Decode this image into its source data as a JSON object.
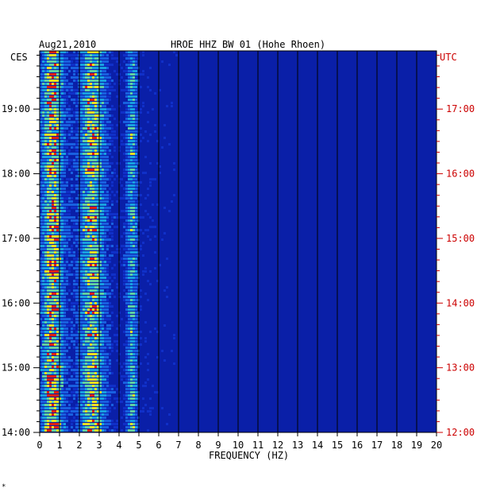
{
  "chart_data": {
    "type": "heatmap",
    "title": "HROE HHZ BW 01 (Hohe Rhoen)",
    "date": "Aug21,2010",
    "left_timezone": "CES",
    "right_timezone": "UTC",
    "xlabel": "FREQUENCY (HZ)",
    "x_ticks": [
      0,
      1,
      2,
      3,
      4,
      5,
      6,
      7,
      8,
      9,
      10,
      11,
      12,
      13,
      14,
      15,
      16,
      17,
      18,
      19,
      20
    ],
    "xlim": [
      0,
      20
    ],
    "left_ticks": [
      "19:00",
      "18:00",
      "17:00",
      "16:00",
      "15:00",
      "14:00"
    ],
    "right_ticks": [
      "17:00",
      "16:00",
      "15:00",
      "14:00",
      "13:00",
      "12:00"
    ],
    "tick_hours": [
      19,
      18,
      17,
      16,
      15,
      14
    ],
    "ylim_hours": [
      14,
      19.9
    ],
    "colors": {
      "background": "#0a1fa8",
      "low": "#1030c8",
      "mid": "#18a0e0",
      "high": "#f0e020",
      "peak": "#e02010",
      "utc_label": "#cc0000"
    },
    "energy_bands_hz": [
      {
        "center": 0.6,
        "width": 0.5,
        "strength": 1.0
      },
      {
        "center": 2.6,
        "width": 0.6,
        "strength": 0.9
      },
      {
        "center": 4.6,
        "width": 0.25,
        "strength": 0.65
      }
    ],
    "footer_mark": "*"
  }
}
